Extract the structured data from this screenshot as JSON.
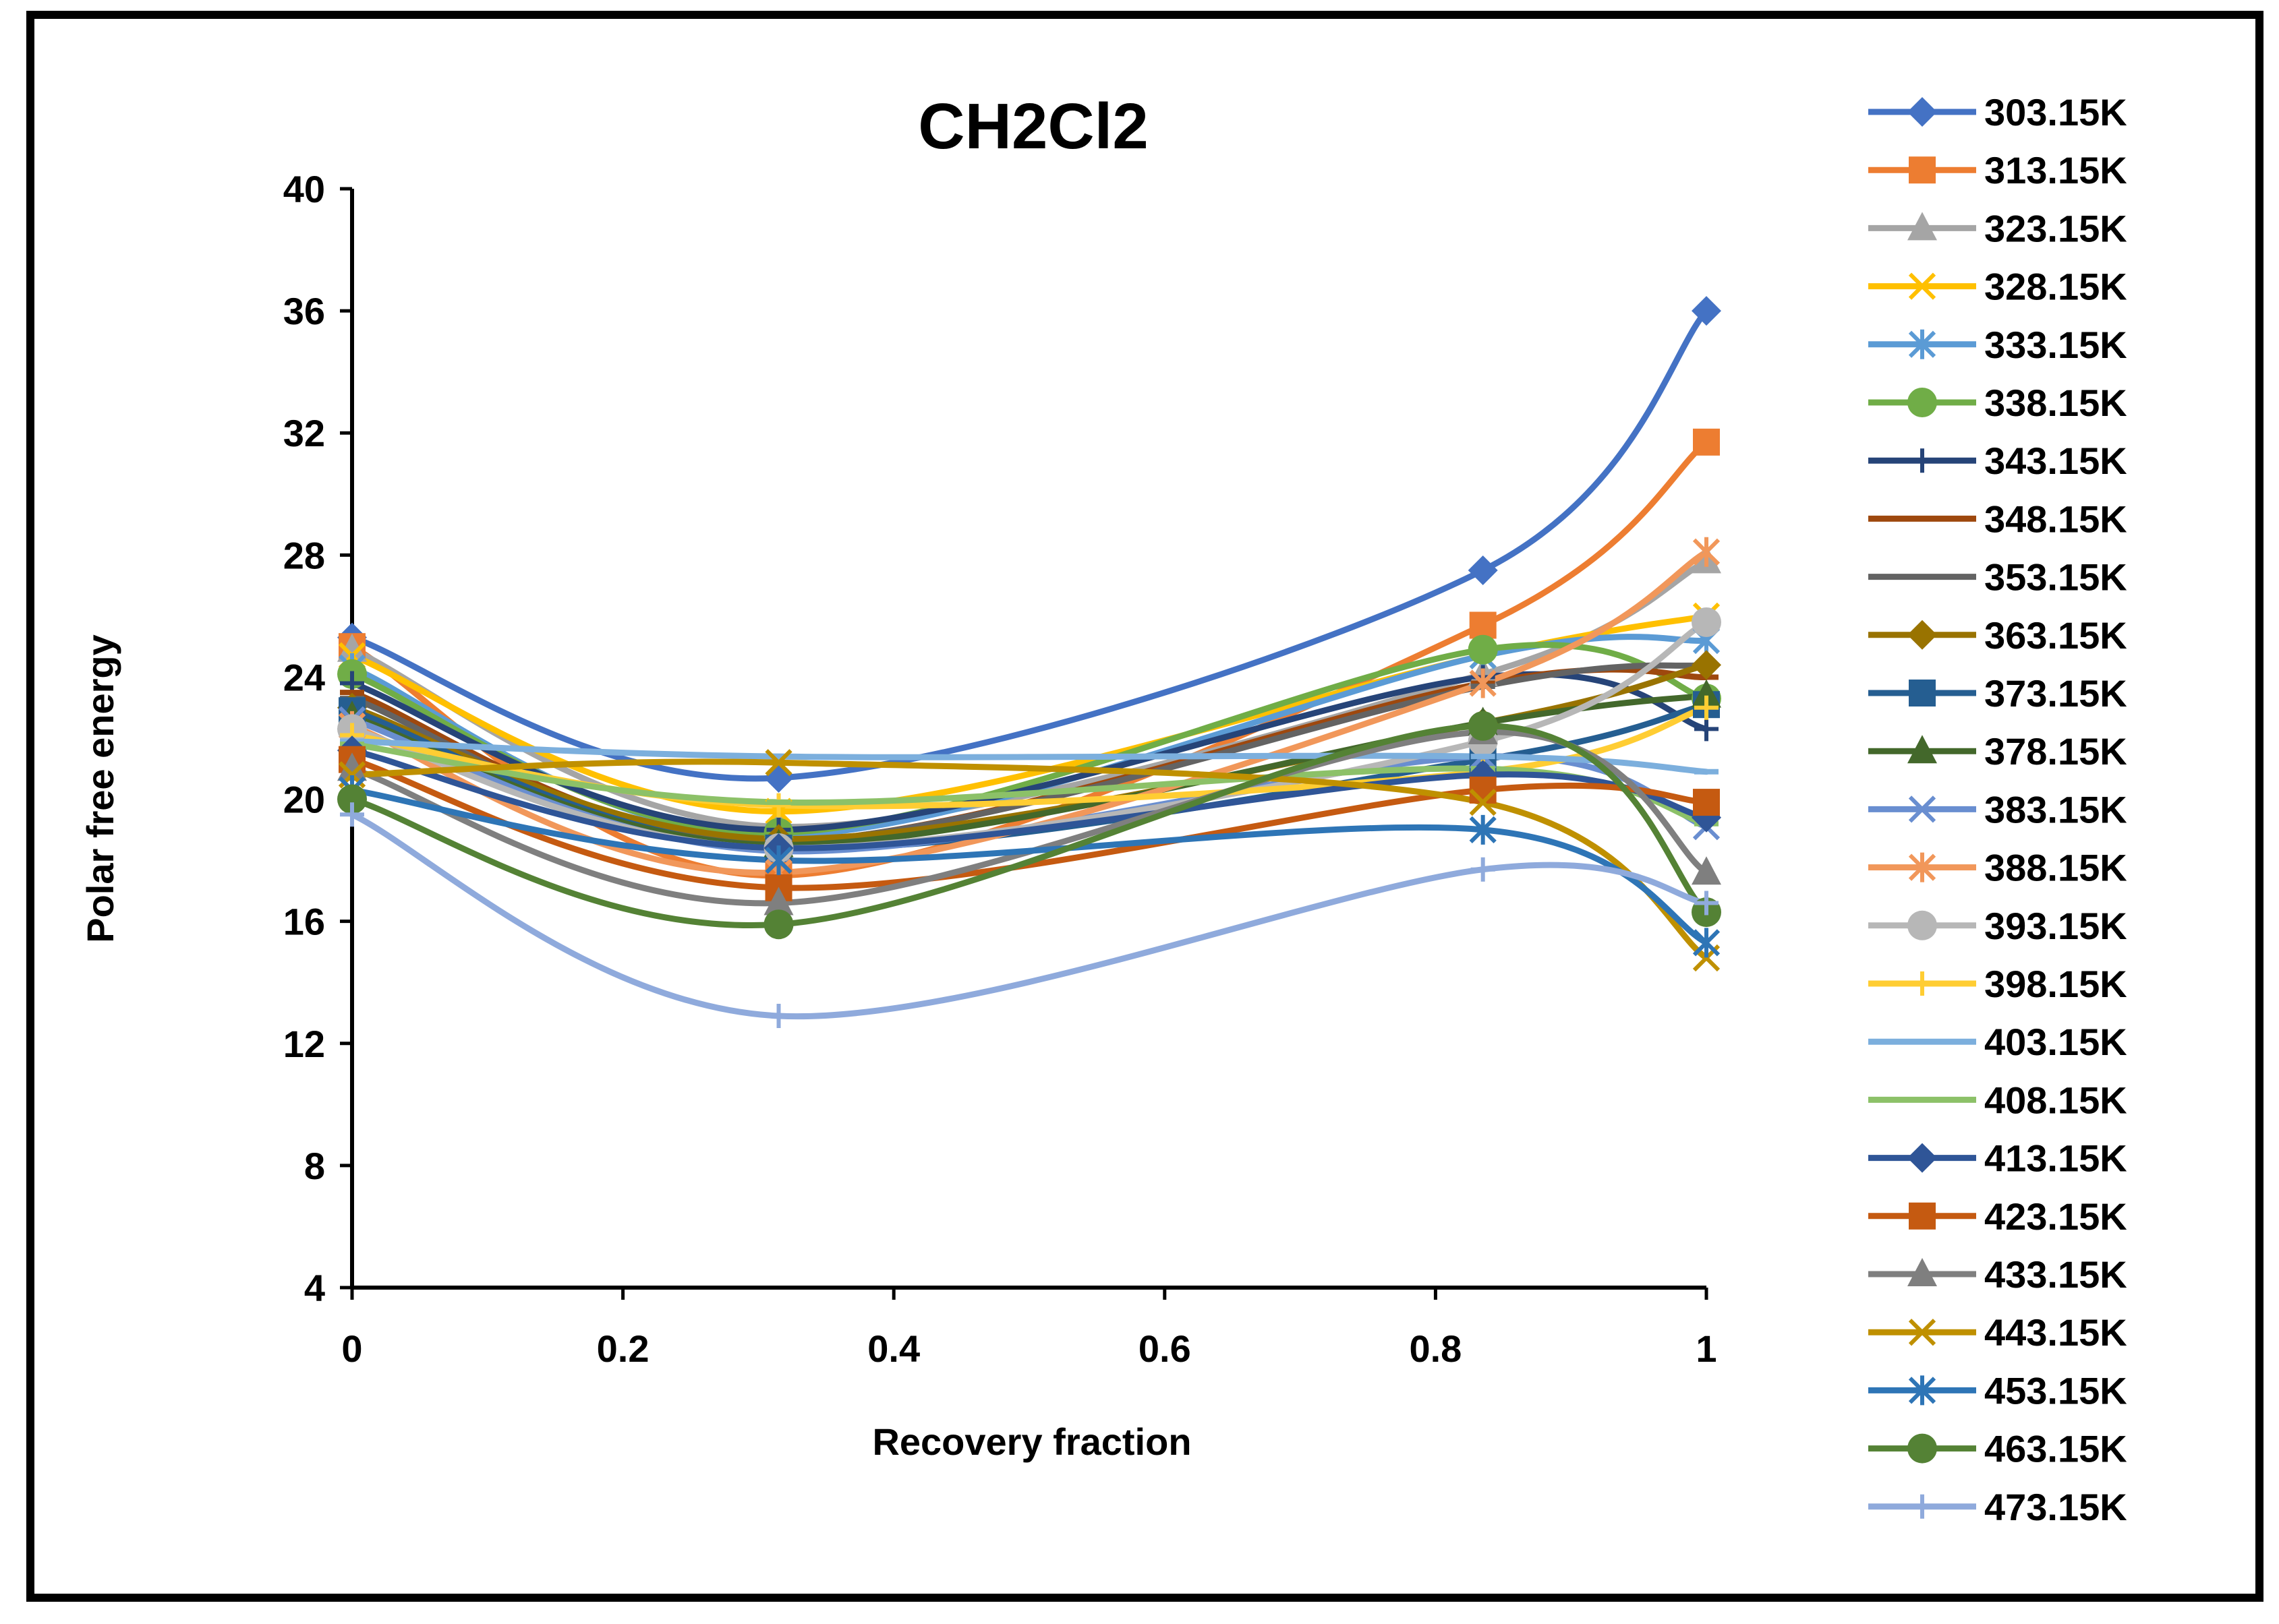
{
  "chart_data": {
    "type": "line",
    "title": "CH2Cl2",
    "xlabel": "Recovery fraction",
    "ylabel": "Polar free energy",
    "xlim": [
      0,
      1
    ],
    "ylim": [
      4,
      40
    ],
    "x_ticks": [
      "0",
      "0.2",
      "0.4",
      "0.6",
      "0.8",
      "1"
    ],
    "y_ticks": [
      "4",
      "8",
      "12",
      "16",
      "20",
      "24",
      "28",
      "32",
      "36",
      "40"
    ],
    "grid": false,
    "legend_position": "right",
    "x": [
      0,
      0.315,
      0.835,
      1
    ],
    "series": [
      {
        "name": "303.15K",
        "marker": "diamond",
        "color": "#4472C4",
        "values": [
          25.3,
          20.7,
          27.5,
          36.0
        ]
      },
      {
        "name": "313.15K",
        "marker": "square",
        "color": "#ED7D31",
        "values": [
          25.0,
          17.5,
          25.7,
          31.7
        ]
      },
      {
        "name": "323.15K",
        "marker": "triangle",
        "color": "#A5A5A5",
        "values": [
          24.9,
          19.1,
          24.1,
          27.8
        ]
      },
      {
        "name": "328.15K",
        "marker": "x",
        "color": "#FFC000",
        "values": [
          24.7,
          19.6,
          24.7,
          26.0
        ]
      },
      {
        "name": "333.15K",
        "marker": "star",
        "color": "#5B9BD5",
        "values": [
          24.3,
          18.8,
          24.7,
          25.2
        ]
      },
      {
        "name": "338.15K",
        "marker": "circle",
        "color": "#70AD47",
        "values": [
          24.1,
          18.9,
          24.9,
          23.3
        ]
      },
      {
        "name": "343.15K",
        "marker": "plus",
        "color": "#264478",
        "values": [
          23.8,
          19.0,
          24.0,
          22.3
        ]
      },
      {
        "name": "348.15K",
        "marker": "dash",
        "color": "#9E480E",
        "values": [
          23.5,
          18.6,
          23.8,
          24.0
        ]
      },
      {
        "name": "353.15K",
        "marker": "dash",
        "color": "#636363",
        "values": [
          23.3,
          18.6,
          23.7,
          24.4
        ]
      },
      {
        "name": "363.15K",
        "marker": "diamond",
        "color": "#997300",
        "values": [
          23.0,
          18.7,
          22.5,
          24.4
        ]
      },
      {
        "name": "373.15K",
        "marker": "square",
        "color": "#255E91",
        "values": [
          22.9,
          18.4,
          21.3,
          23.1
        ]
      },
      {
        "name": "378.15K",
        "marker": "triangle",
        "color": "#43682B",
        "values": [
          22.7,
          18.5,
          22.5,
          23.4
        ]
      },
      {
        "name": "383.15K",
        "marker": "x",
        "color": "#698ED0",
        "values": [
          22.6,
          18.3,
          21.4,
          19.1
        ]
      },
      {
        "name": "388.15K",
        "marker": "star",
        "color": "#F1975A",
        "values": [
          22.4,
          17.6,
          23.8,
          28.1
        ]
      },
      {
        "name": "393.15K",
        "marker": "circle",
        "color": "#B7B7B7",
        "values": [
          22.3,
          18.4,
          21.9,
          25.8
        ]
      },
      {
        "name": "398.15K",
        "marker": "plus",
        "color": "#FFCD33",
        "values": [
          22.1,
          19.8,
          20.9,
          23.0
        ]
      },
      {
        "name": "403.15K",
        "marker": "dash",
        "color": "#7CAFDD",
        "values": [
          21.9,
          21.4,
          21.4,
          20.9
        ]
      },
      {
        "name": "408.15K",
        "marker": "dash",
        "color": "#8CC168",
        "values": [
          21.8,
          19.9,
          21.0,
          19.2
        ]
      },
      {
        "name": "413.15K",
        "marker": "diamond",
        "color": "#2F5597",
        "values": [
          21.6,
          18.4,
          20.8,
          19.4
        ]
      },
      {
        "name": "423.15K",
        "marker": "square",
        "color": "#C55A11",
        "values": [
          21.3,
          17.1,
          20.3,
          19.9
        ]
      },
      {
        "name": "433.15K",
        "marker": "triangle",
        "color": "#7F7F7F",
        "values": [
          21.0,
          16.6,
          22.2,
          17.6
        ]
      },
      {
        "name": "443.15K",
        "marker": "x",
        "color": "#BF9000",
        "values": [
          20.8,
          21.2,
          19.9,
          14.8
        ]
      },
      {
        "name": "453.15K",
        "marker": "star",
        "color": "#2E75B6",
        "values": [
          20.3,
          18.0,
          19.0,
          15.3
        ]
      },
      {
        "name": "463.15K",
        "marker": "circle",
        "color": "#548235",
        "values": [
          20.0,
          15.9,
          22.4,
          16.3
        ]
      },
      {
        "name": "473.15K",
        "marker": "plus",
        "color": "#8FAADC",
        "values": [
          19.5,
          12.9,
          17.7,
          16.6
        ]
      }
    ]
  }
}
